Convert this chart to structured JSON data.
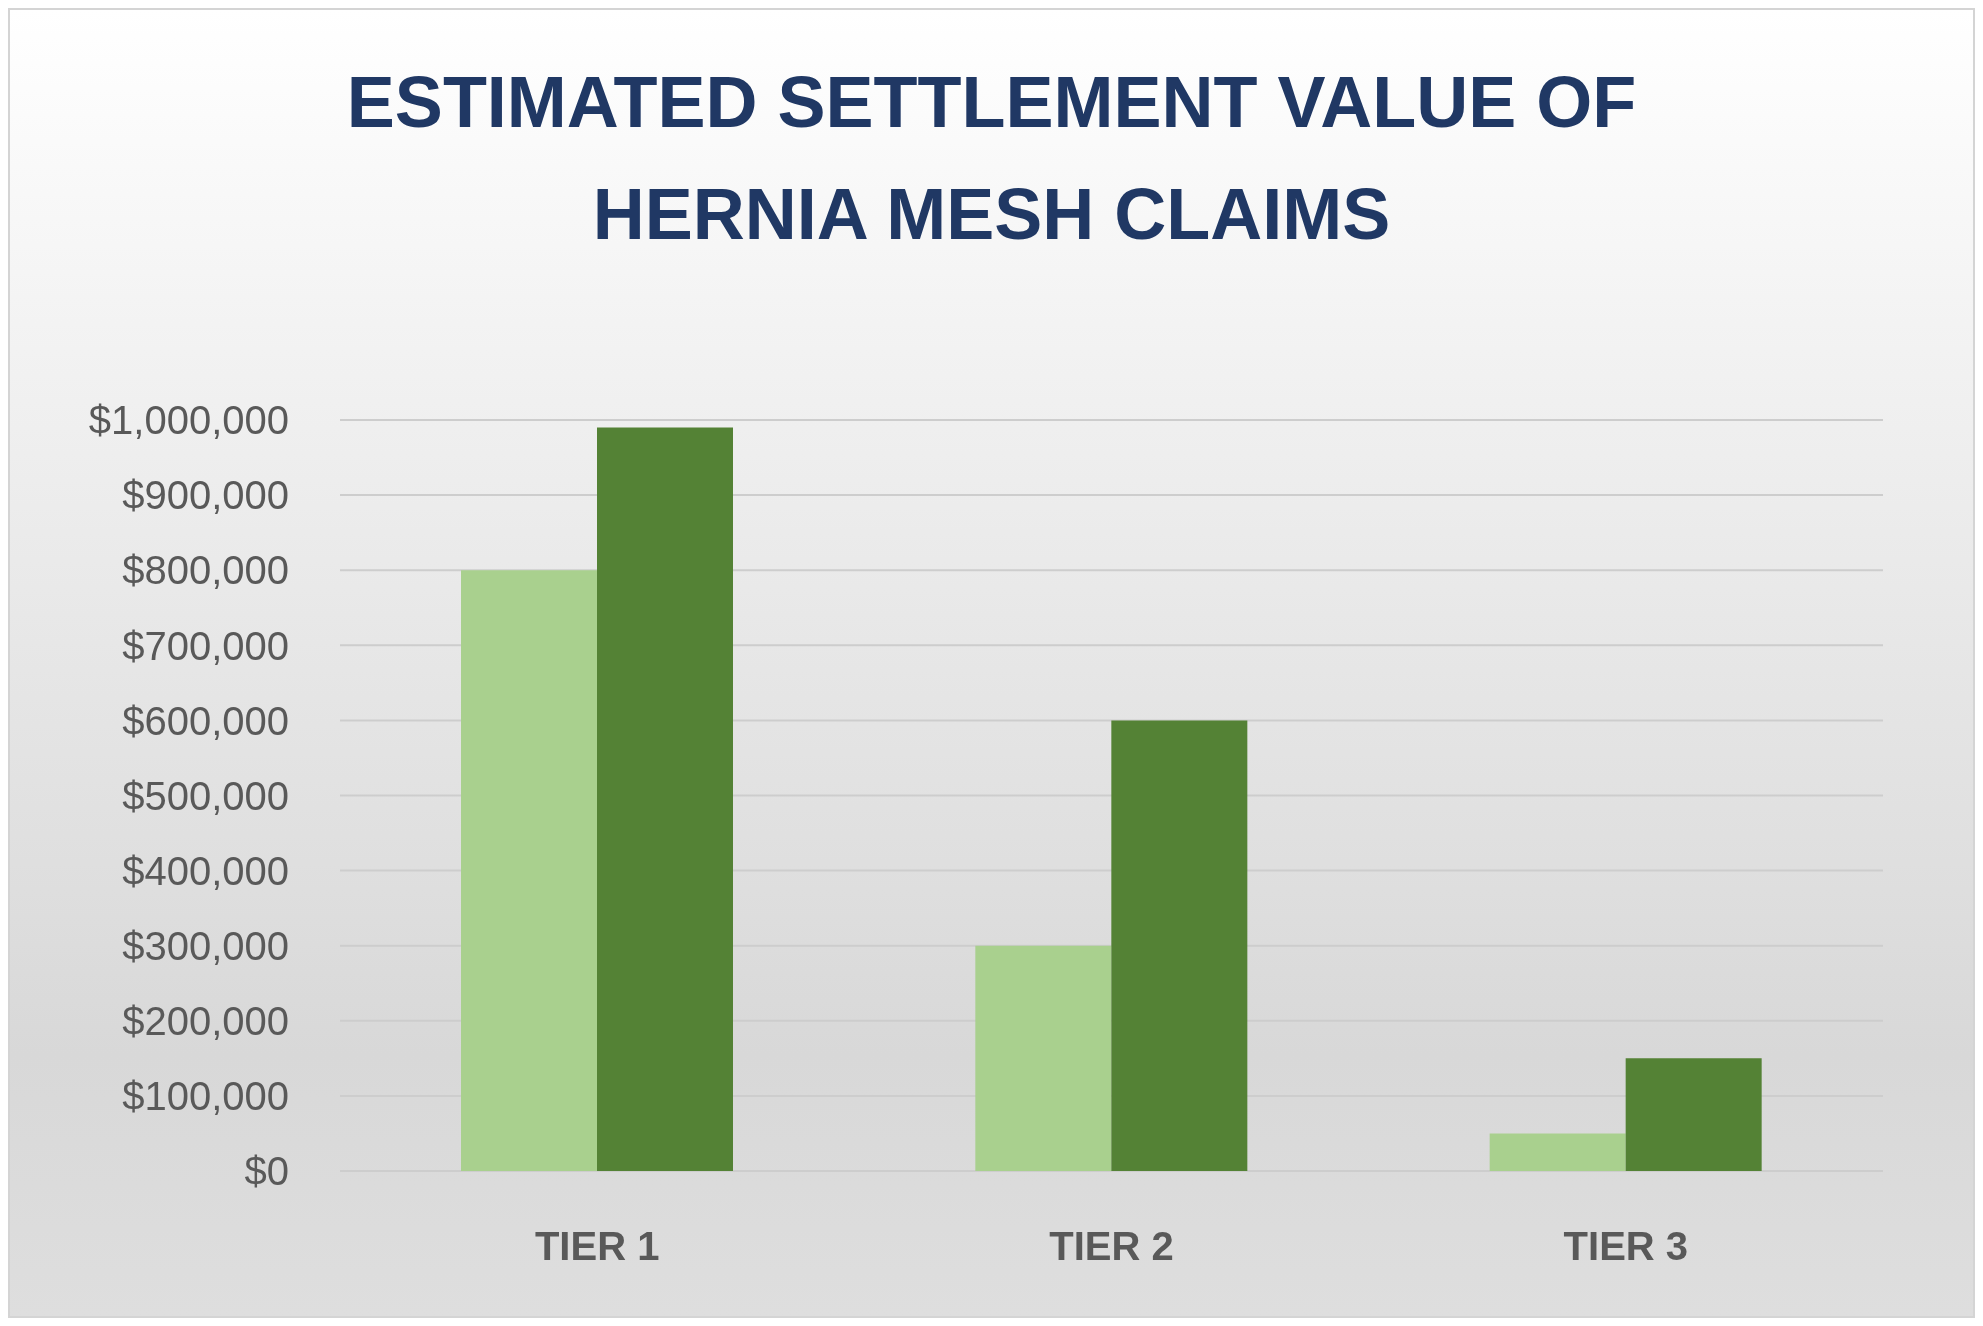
{
  "chart_data": {
    "type": "bar",
    "title": "ESTIMATED SETTLEMENT VALUE OF HERNIA MESH CLAIMS",
    "categories": [
      "TIER 1",
      "TIER 2",
      "TIER 3"
    ],
    "series": [
      {
        "color": "#a9d08e",
        "values": [
          800000,
          300000,
          50000
        ]
      },
      {
        "color": "#548235",
        "values": [
          990000,
          600000,
          150000
        ]
      }
    ],
    "ylim": [
      0,
      1000000
    ],
    "yticks": [
      {
        "value": 0,
        "label": "$0"
      },
      {
        "value": 100000,
        "label": "$100,000"
      },
      {
        "value": 200000,
        "label": "$200,000"
      },
      {
        "value": 300000,
        "label": "$300,000"
      },
      {
        "value": 400000,
        "label": "$400,000"
      },
      {
        "value": 500000,
        "label": "$500,000"
      },
      {
        "value": 600000,
        "label": "$600,000"
      },
      {
        "value": 700000,
        "label": "$700,000"
      },
      {
        "value": 800000,
        "label": "$800,000"
      },
      {
        "value": 900000,
        "label": "$900,000"
      },
      {
        "value": 1000000,
        "label": "$1,000,000"
      }
    ],
    "grid": "y"
  }
}
